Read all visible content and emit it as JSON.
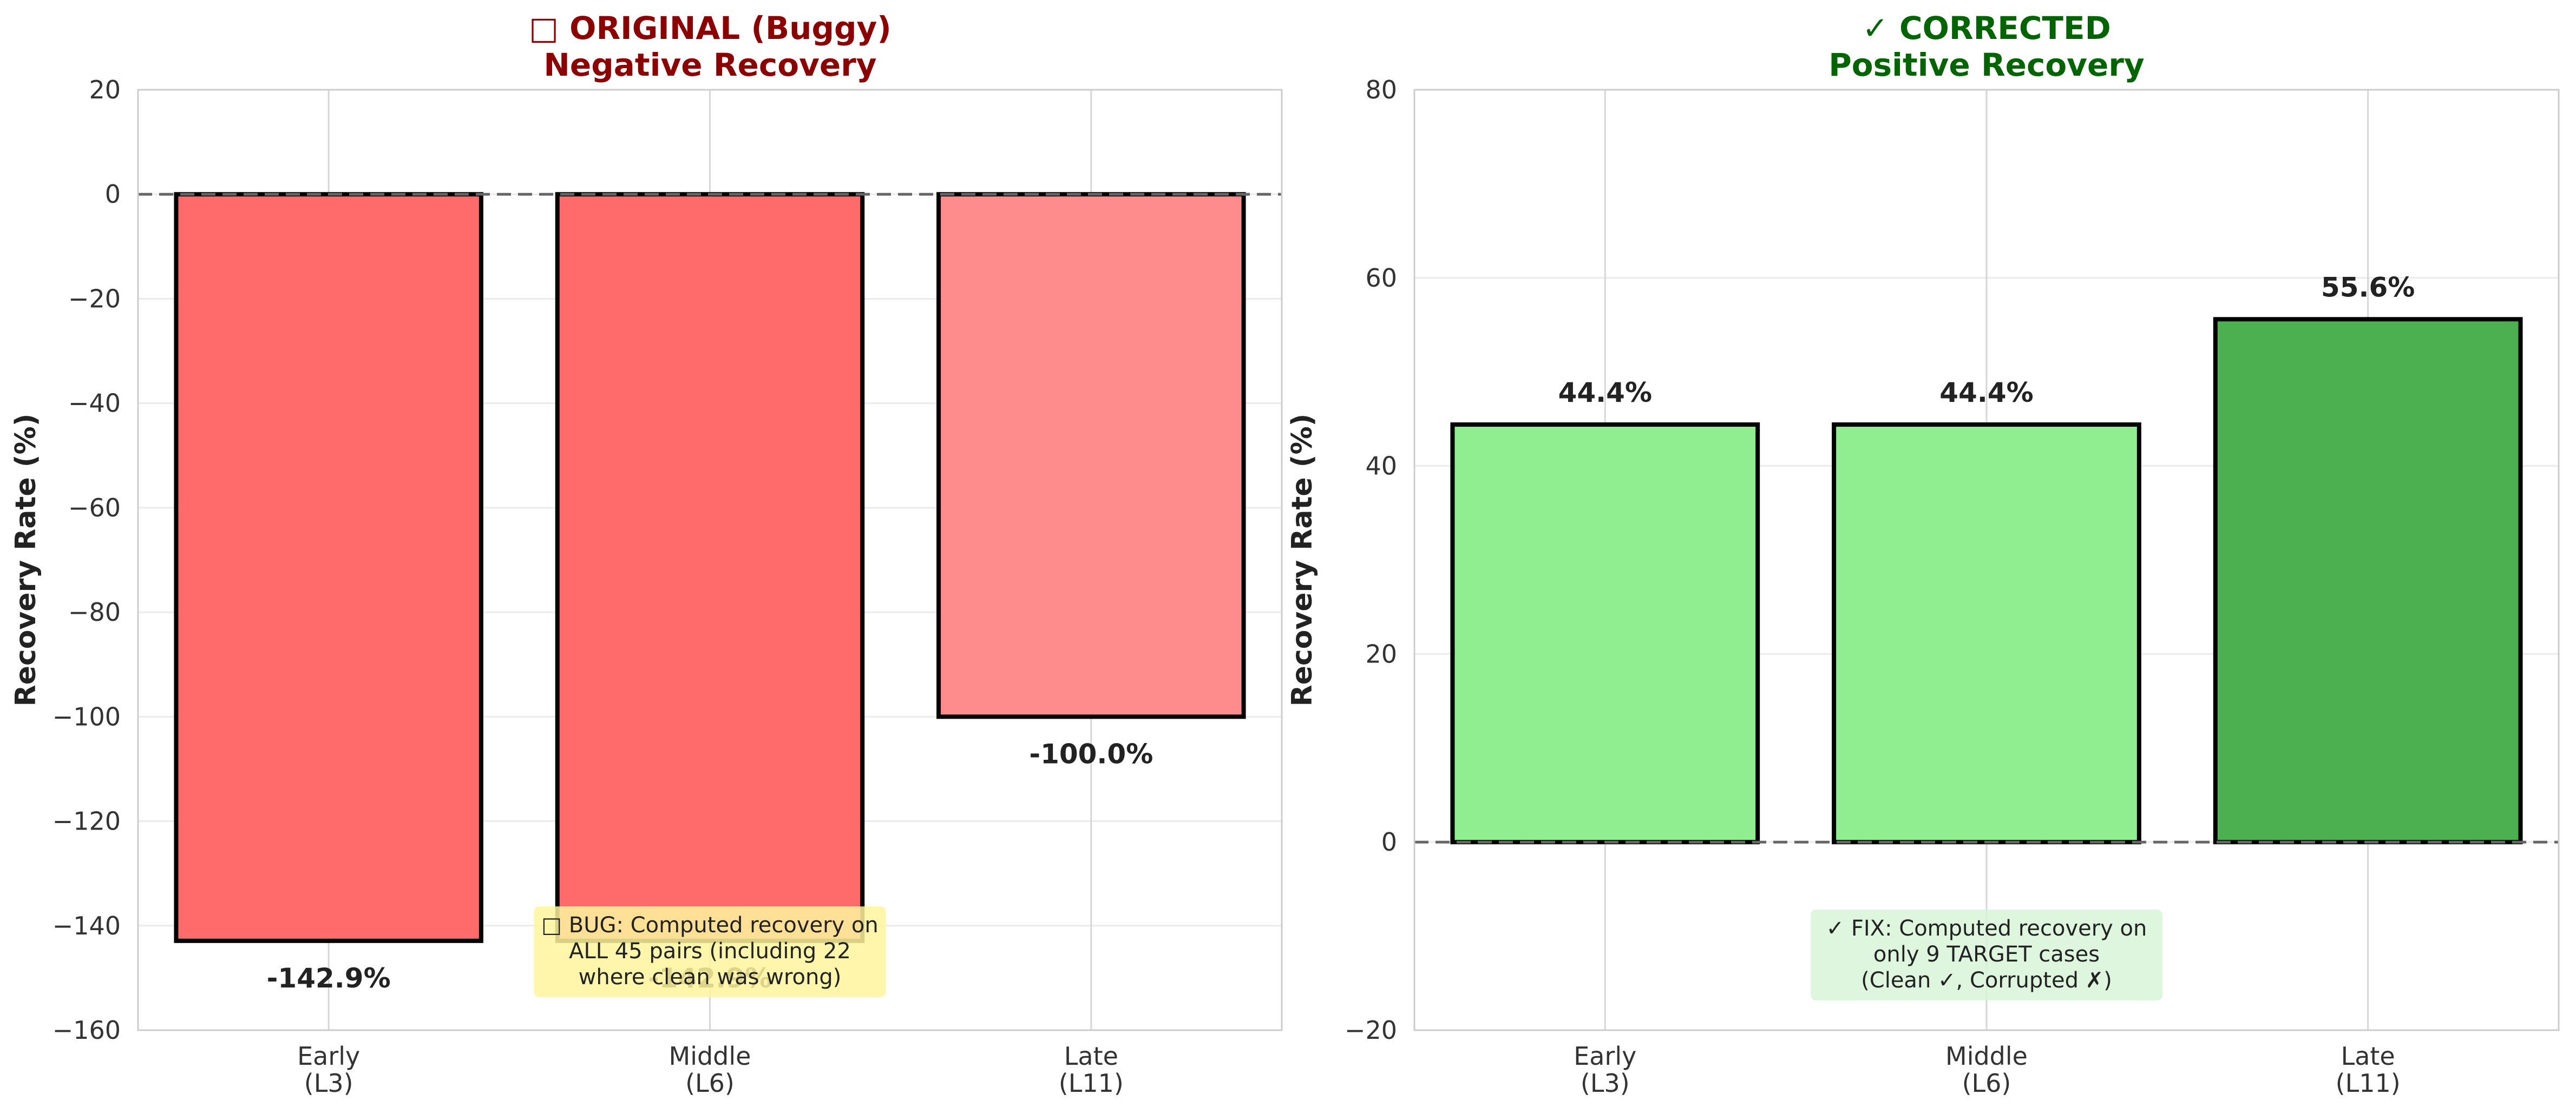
{
  "chart_data": [
    {
      "type": "bar",
      "title": "□ ORIGINAL (Buggy)",
      "subtitle": "Negative Recovery",
      "title_color": "#8b0000",
      "ylabel": "Recovery Rate (%)",
      "ylim": [
        -160,
        20
      ],
      "yticks": [
        20,
        0,
        -20,
        -40,
        -60,
        -80,
        -100,
        -120,
        -140,
        -160
      ],
      "categories": [
        "Early\n(L3)",
        "Middle\n(L6)",
        "Late\n(L11)"
      ],
      "values": [
        -142.9,
        -142.9,
        -100.0
      ],
      "value_labels": [
        "-142.9%",
        "-142.9%",
        "-100.0%"
      ],
      "bar_colors": [
        "#ff6b6b",
        "#ff6b6b",
        "#ff8c8c"
      ],
      "reference_line": 0,
      "grid": true,
      "annotation": {
        "lines": [
          "□ BUG: Computed recovery on",
          "ALL 45 pairs (including 22",
          "where clean was wrong)"
        ],
        "background": "#fff59d",
        "anchor_category": 1,
        "anchor_y": -145
      }
    },
    {
      "type": "bar",
      "title": "✓ CORRECTED",
      "subtitle": "Positive Recovery",
      "title_color": "#006400",
      "ylabel": "Recovery Rate (%)",
      "ylim": [
        -20,
        80
      ],
      "yticks": [
        80,
        60,
        40,
        20,
        0,
        -20
      ],
      "categories": [
        "Early\n(L3)",
        "Middle\n(L6)",
        "Late\n(L11)"
      ],
      "values": [
        44.4,
        44.4,
        55.6
      ],
      "value_labels": [
        "44.4%",
        "44.4%",
        "55.6%"
      ],
      "bar_colors": [
        "#90ee90",
        "#90ee90",
        "#4caf50"
      ],
      "reference_line": 0,
      "grid": true,
      "annotation": {
        "lines": [
          "✓ FIX: Computed recovery on",
          "only 9 TARGET cases",
          "(Clean ✓, Corrupted ✗)"
        ],
        "background": "#d8f5d8",
        "anchor_category": 1,
        "anchor_y": -12
      }
    }
  ]
}
